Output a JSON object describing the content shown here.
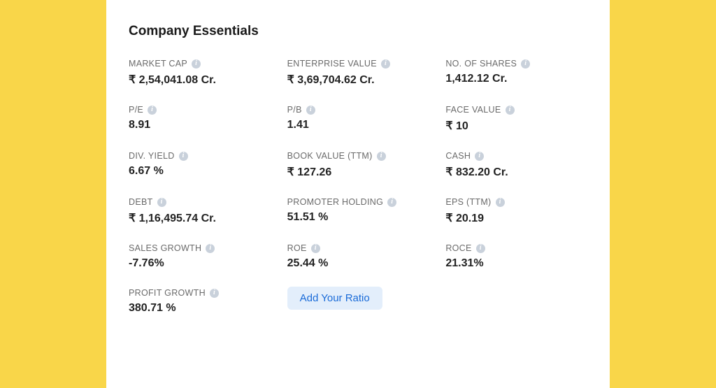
{
  "title": "Company Essentials",
  "metrics": {
    "market_cap": {
      "label": "MARKET CAP",
      "value": "₹ 2,54,041.08 Cr."
    },
    "enterprise_value": {
      "label": "ENTERPRISE VALUE",
      "value": "₹ 3,69,704.62 Cr."
    },
    "no_of_shares": {
      "label": "NO. OF SHARES",
      "value": "1,412.12 Cr."
    },
    "pe": {
      "label": "P/E",
      "value": "8.91"
    },
    "pb": {
      "label": "P/B",
      "value": "1.41"
    },
    "face_value": {
      "label": "FACE VALUE",
      "value": "₹ 10"
    },
    "div_yield": {
      "label": "DIV. YIELD",
      "value": "6.67 %"
    },
    "book_value": {
      "label": "BOOK VALUE (TTM)",
      "value": "₹  127.26"
    },
    "cash": {
      "label": "CASH",
      "value": "₹ 832.20 Cr."
    },
    "debt": {
      "label": "DEBT",
      "value": "₹ 1,16,495.74 Cr."
    },
    "promoter_holding": {
      "label": "PROMOTER HOLDING",
      "value": "51.51 %"
    },
    "eps": {
      "label": "EPS (TTM)",
      "value": "₹  20.19"
    },
    "sales_growth": {
      "label": "SALES GROWTH",
      "value": "-7.76%"
    },
    "roe": {
      "label": "ROE",
      "value": "25.44 %"
    },
    "roce": {
      "label": "ROCE",
      "value": "21.31%"
    },
    "profit_growth": {
      "label": "PROFIT GROWTH",
      "value": "380.71 %"
    }
  },
  "add_button_label": "Add Your Ratio",
  "colors": {
    "page_bg": "#f9d649",
    "card_bg": "#ffffff",
    "label_text": "#6a6a6a",
    "value_text": "#222222",
    "info_icon_bg": "#c9d1db",
    "button_bg": "#e3eefb",
    "button_text": "#1a6bd8"
  }
}
